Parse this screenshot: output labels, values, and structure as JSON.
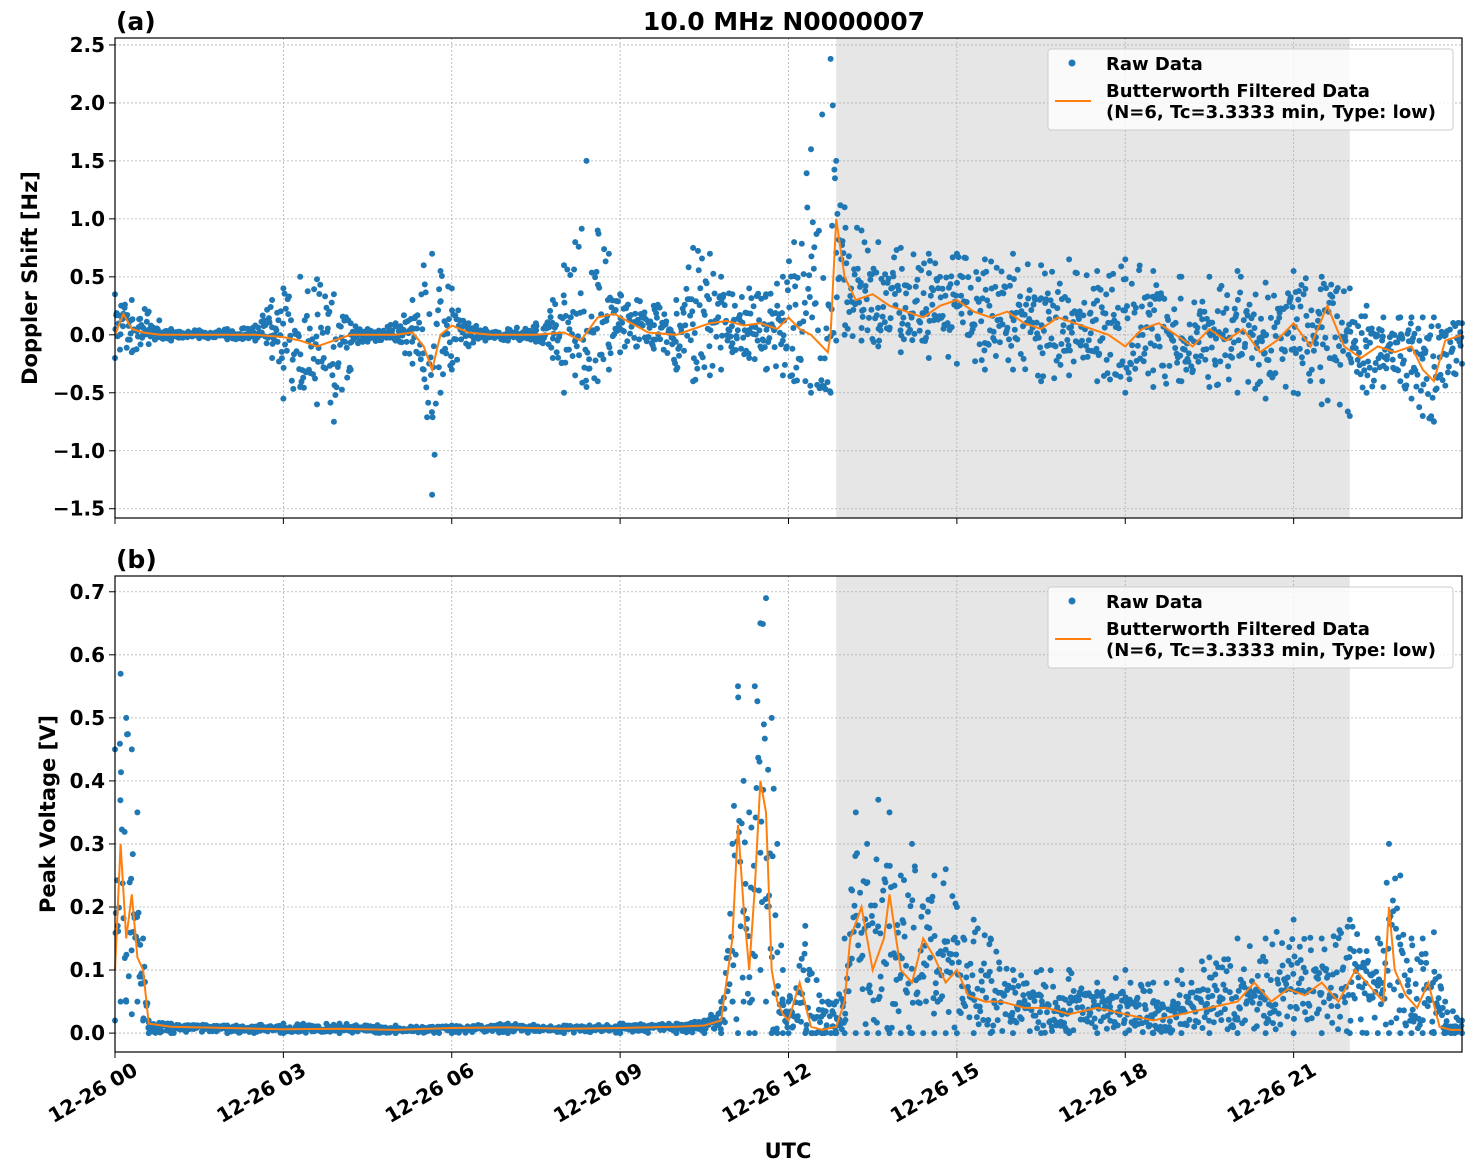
{
  "title": "10.0 MHz N0000007",
  "xlabel": "UTC",
  "x_ticks": [
    "12-26 00",
    "12-26 03",
    "12-26 06",
    "12-26 09",
    "12-26 12",
    "12-26 15",
    "12-26 18",
    "12-26 21"
  ],
  "colors": {
    "raw": "#1f77b4",
    "filtered": "#ff7f0e",
    "shade": "#e6e6e6",
    "grid": "#b0b0b0"
  },
  "chart_data": [
    {
      "type": "scatter",
      "panel": "(a)",
      "title": "10.0 MHz N0000007",
      "xlabel": "",
      "ylabel": "Doppler Shift [Hz]",
      "xlim_hours": [
        0,
        24
      ],
      "ylim": [
        -1.58,
        2.56
      ],
      "y_ticks": [
        -1.5,
        -1.0,
        -0.5,
        0.0,
        0.5,
        1.0,
        1.5,
        2.0,
        2.5
      ],
      "y_tick_labels": [
        "−1.5",
        "−1.0",
        "−0.5",
        "0.0",
        "0.5",
        "1.0",
        "1.5",
        "2.0",
        "2.5"
      ],
      "grid": true,
      "shaded_region_hours": [
        12.85,
        22.0
      ],
      "legend": {
        "placement": "top-right",
        "entries": [
          "Raw Data",
          "Butterworth Filtered Data",
          "(N=6, Tc=3.3333 min, Type: low)"
        ]
      },
      "series": [
        {
          "name": "Raw Data",
          "marker": "dot",
          "x": [
            0,
            0.3,
            0.6,
            1,
            1.5,
            2,
            2.5,
            2.8,
            3,
            3.3,
            3.6,
            3.9,
            4.2,
            4.5,
            5,
            5.3,
            5.5,
            5.65,
            5.8,
            6,
            6.3,
            6.6,
            7,
            7.5,
            7.8,
            8,
            8.2,
            8.4,
            8.6,
            8.8,
            9,
            9.3,
            9.6,
            10,
            10.3,
            10.6,
            10.8,
            11,
            11.3,
            11.6,
            11.9,
            12.1,
            12.4,
            12.6,
            12.75,
            12.85,
            13,
            13.3,
            13.6,
            14,
            14.5,
            15,
            15.5,
            16,
            16.5,
            17,
            17.5,
            18,
            18.5,
            19,
            19.5,
            20,
            20.5,
            21,
            21.5,
            22,
            22.3,
            22.6,
            22.9,
            23.1,
            23.3,
            23.5,
            24
          ],
          "y_min": [
            -0.2,
            -0.15,
            -0.08,
            -0.05,
            -0.03,
            -0.04,
            -0.05,
            -0.2,
            -0.55,
            -0.45,
            -0.6,
            -0.75,
            -0.3,
            -0.06,
            -0.05,
            -0.25,
            -0.3,
            -1.38,
            -0.5,
            -0.3,
            -0.1,
            -0.05,
            -0.05,
            -0.06,
            -0.2,
            -0.5,
            -0.35,
            -0.45,
            -0.4,
            -0.3,
            -0.15,
            -0.1,
            -0.12,
            -0.3,
            -0.4,
            -0.35,
            -0.3,
            -0.15,
            -0.2,
            -0.3,
            -0.35,
            -0.4,
            -0.5,
            -0.45,
            -0.5,
            -0.05,
            0.0,
            -0.05,
            -0.1,
            -0.15,
            -0.2,
            -0.25,
            -0.3,
            -0.3,
            -0.4,
            -0.35,
            -0.4,
            -0.5,
            -0.45,
            -0.4,
            -0.45,
            -0.5,
            -0.55,
            -0.5,
            -0.6,
            -0.7,
            -0.5,
            -0.45,
            -0.4,
            -0.55,
            -0.7,
            -0.75,
            -0.25
          ],
          "y_max": [
            0.35,
            0.3,
            0.2,
            0.05,
            0.04,
            0.05,
            0.08,
            0.3,
            0.4,
            0.5,
            0.48,
            0.35,
            0.1,
            0.05,
            0.1,
            0.3,
            0.6,
            0.7,
            0.55,
            0.4,
            0.1,
            0.05,
            0.05,
            0.1,
            0.3,
            0.6,
            0.8,
            1.5,
            0.9,
            0.7,
            0.35,
            0.3,
            0.25,
            0.3,
            0.75,
            0.7,
            0.5,
            0.35,
            0.4,
            0.35,
            0.5,
            0.8,
            1.6,
            1.9,
            2.38,
            1.5,
            1.1,
            0.9,
            0.8,
            0.75,
            0.7,
            0.7,
            0.65,
            0.7,
            0.6,
            0.65,
            0.55,
            0.65,
            0.55,
            0.5,
            0.5,
            0.55,
            0.45,
            0.55,
            0.5,
            0.4,
            0.25,
            0.15,
            0.15,
            0.15,
            0.15,
            0.15,
            0.1
          ]
        },
        {
          "name": "Butterworth Filtered Data",
          "marker": "line",
          "x": [
            0,
            0.15,
            0.3,
            0.5,
            0.8,
            1,
            1.5,
            2,
            2.5,
            3,
            3.3,
            3.6,
            3.9,
            4.2,
            4.6,
            5,
            5.3,
            5.5,
            5.65,
            5.8,
            6,
            6.3,
            6.7,
            7,
            7.5,
            8,
            8.3,
            8.6,
            8.9,
            9.2,
            9.5,
            10,
            10.3,
            10.6,
            10.9,
            11.2,
            11.5,
            11.8,
            12,
            12.2,
            12.4,
            12.6,
            12.7,
            12.75,
            12.85,
            13,
            13.2,
            13.5,
            13.8,
            14.1,
            14.4,
            14.7,
            15,
            15.3,
            15.6,
            15.9,
            16.2,
            16.5,
            16.8,
            17.1,
            17.4,
            17.7,
            18,
            18.3,
            18.6,
            18.9,
            19.2,
            19.5,
            19.8,
            20.1,
            20.4,
            20.7,
            21,
            21.3,
            21.6,
            21.9,
            22.2,
            22.5,
            22.8,
            23.1,
            23.3,
            23.5,
            23.7,
            24
          ],
          "y": [
            0.0,
            0.18,
            0.05,
            0.02,
            0.0,
            0.0,
            0.0,
            0.0,
            0.0,
            -0.02,
            -0.05,
            -0.1,
            -0.05,
            0.0,
            0.0,
            0.0,
            0.02,
            -0.1,
            -0.3,
            0.0,
            0.08,
            0.02,
            0.0,
            0.0,
            0.0,
            0.02,
            -0.05,
            0.15,
            0.18,
            0.1,
            0.02,
            0.0,
            0.05,
            0.1,
            0.12,
            0.08,
            0.1,
            0.05,
            0.15,
            0.05,
            0.0,
            -0.1,
            -0.15,
            0.0,
            1.0,
            0.5,
            0.3,
            0.35,
            0.25,
            0.2,
            0.15,
            0.25,
            0.3,
            0.2,
            0.15,
            0.2,
            0.1,
            0.05,
            0.15,
            0.1,
            0.05,
            0.0,
            -0.1,
            0.05,
            0.1,
            0.0,
            -0.1,
            0.05,
            -0.05,
            0.05,
            -0.15,
            -0.05,
            0.1,
            -0.1,
            0.25,
            -0.1,
            -0.2,
            -0.1,
            -0.15,
            -0.1,
            -0.3,
            -0.4,
            -0.05,
            0.0
          ]
        }
      ]
    },
    {
      "type": "scatter",
      "panel": "(b)",
      "title": "",
      "xlabel": "UTC",
      "ylabel": "Peak Voltage [V]",
      "xlim_hours": [
        0,
        24
      ],
      "ylim": [
        -0.03,
        0.725
      ],
      "y_ticks": [
        0.0,
        0.1,
        0.2,
        0.3,
        0.4,
        0.5,
        0.6,
        0.7
      ],
      "y_tick_labels": [
        "0.0",
        "0.1",
        "0.2",
        "0.3",
        "0.4",
        "0.5",
        "0.6",
        "0.7"
      ],
      "grid": true,
      "shaded_region_hours": [
        12.85,
        22.0
      ],
      "legend": {
        "placement": "top-right",
        "entries": [
          "Raw Data",
          "Butterworth Filtered Data",
          "(N=6, Tc=3.3333 min, Type: low)"
        ]
      },
      "series": [
        {
          "name": "Raw Data",
          "marker": "dot",
          "x": [
            0,
            0.1,
            0.2,
            0.3,
            0.4,
            0.5,
            0.6,
            1,
            2,
            3,
            4,
            5,
            6,
            7,
            8,
            9,
            10,
            10.5,
            10.8,
            11,
            11.1,
            11.2,
            11.3,
            11.4,
            11.5,
            11.6,
            11.7,
            11.8,
            11.9,
            12,
            12.3,
            12.6,
            12.85,
            13,
            13.2,
            13.4,
            13.6,
            13.8,
            14,
            14.2,
            14.4,
            14.6,
            14.8,
            15,
            15.3,
            15.6,
            16,
            16.5,
            17,
            17.5,
            18,
            18.5,
            19,
            19.5,
            20,
            20.5,
            21,
            21.5,
            22,
            22.3,
            22.5,
            22.7,
            22.9,
            23.1,
            23.3,
            23.5,
            23.7,
            24
          ],
          "y_min": [
            0.02,
            0.05,
            0.05,
            0.03,
            0.05,
            0.02,
            0.0,
            0.0,
            0.0,
            0.0,
            0.0,
            0.0,
            0.0,
            0.0,
            0.0,
            0.0,
            0.0,
            0.0,
            0.0,
            0.05,
            0.0,
            0.05,
            0.0,
            0.0,
            0.1,
            0.05,
            0.0,
            0.0,
            0.0,
            0.0,
            0.0,
            0.0,
            0.0,
            0.0,
            0.0,
            0.0,
            0.0,
            0.0,
            0.0,
            0.0,
            0.0,
            0.0,
            0.0,
            0.0,
            0.0,
            0.0,
            0.0,
            0.0,
            0.0,
            0.0,
            0.0,
            0.0,
            0.0,
            0.0,
            0.0,
            0.0,
            0.0,
            0.0,
            0.0,
            0.0,
            0.0,
            0.0,
            0.0,
            0.0,
            0.0,
            0.0,
            0.0,
            0.0
          ],
          "y_max": [
            0.45,
            0.57,
            0.5,
            0.45,
            0.35,
            0.15,
            0.02,
            0.015,
            0.012,
            0.015,
            0.015,
            0.012,
            0.012,
            0.015,
            0.012,
            0.015,
            0.015,
            0.02,
            0.05,
            0.3,
            0.55,
            0.4,
            0.35,
            0.55,
            0.65,
            0.69,
            0.5,
            0.3,
            0.1,
            0.05,
            0.17,
            0.05,
            0.05,
            0.15,
            0.35,
            0.3,
            0.37,
            0.35,
            0.25,
            0.3,
            0.2,
            0.25,
            0.26,
            0.2,
            0.18,
            0.15,
            0.1,
            0.1,
            0.1,
            0.08,
            0.1,
            0.08,
            0.1,
            0.12,
            0.15,
            0.15,
            0.18,
            0.15,
            0.18,
            0.13,
            0.15,
            0.3,
            0.25,
            0.15,
            0.15,
            0.16,
            0.05,
            0.02
          ]
        },
        {
          "name": "Butterworth Filtered Data",
          "marker": "line",
          "x": [
            0,
            0.1,
            0.2,
            0.3,
            0.4,
            0.5,
            0.6,
            1,
            2,
            3,
            4,
            5,
            6,
            7,
            8,
            9,
            10,
            10.5,
            10.8,
            11,
            11.1,
            11.2,
            11.3,
            11.4,
            11.5,
            11.6,
            11.7,
            11.8,
            11.9,
            12,
            12.2,
            12.4,
            12.6,
            12.85,
            13,
            13.1,
            13.3,
            13.5,
            13.7,
            13.8,
            14,
            14.2,
            14.4,
            14.6,
            14.8,
            15,
            15.2,
            15.5,
            15.8,
            16.2,
            16.6,
            17,
            17.5,
            18,
            18.5,
            19,
            19.5,
            20,
            20.3,
            20.6,
            20.9,
            21.2,
            21.5,
            21.8,
            22.1,
            22.4,
            22.6,
            22.7,
            22.8,
            23,
            23.2,
            23.4,
            23.6,
            23.8,
            24
          ],
          "y": [
            0.1,
            0.3,
            0.15,
            0.22,
            0.12,
            0.1,
            0.015,
            0.01,
            0.008,
            0.006,
            0.007,
            0.005,
            0.008,
            0.009,
            0.007,
            0.008,
            0.01,
            0.012,
            0.02,
            0.15,
            0.33,
            0.2,
            0.1,
            0.23,
            0.4,
            0.35,
            0.1,
            0.05,
            0.03,
            0.02,
            0.08,
            0.01,
            0.005,
            0.01,
            0.05,
            0.15,
            0.2,
            0.1,
            0.15,
            0.22,
            0.1,
            0.08,
            0.15,
            0.12,
            0.08,
            0.1,
            0.06,
            0.05,
            0.05,
            0.04,
            0.04,
            0.03,
            0.04,
            0.03,
            0.02,
            0.03,
            0.04,
            0.05,
            0.08,
            0.05,
            0.07,
            0.06,
            0.08,
            0.05,
            0.1,
            0.07,
            0.05,
            0.2,
            0.1,
            0.06,
            0.04,
            0.08,
            0.01,
            0.005,
            0.005
          ]
        }
      ]
    }
  ]
}
